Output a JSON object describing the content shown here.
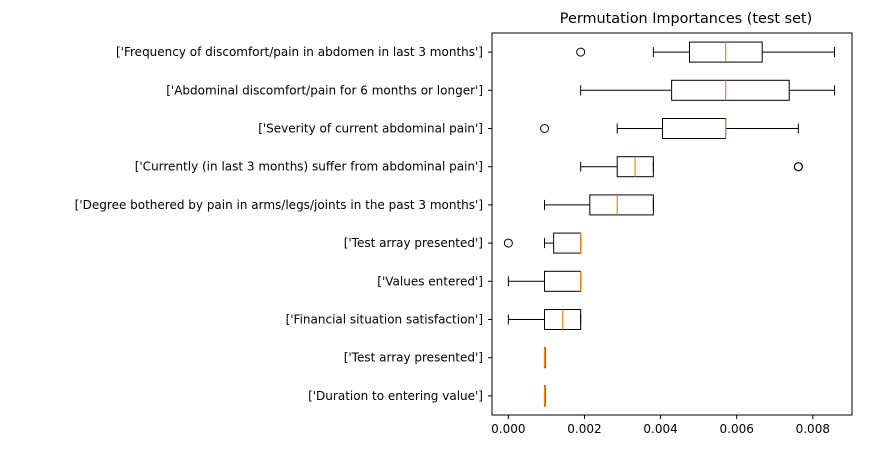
{
  "chart_data": {
    "type": "boxplot",
    "orientation": "horizontal",
    "title": "Permutation Importances (test set)",
    "xlabel": "",
    "ylabel": "",
    "xlim": [
      -0.00043,
      0.00903
    ],
    "xticks": [
      0.0,
      0.002,
      0.004,
      0.006,
      0.008
    ],
    "xtick_labels": [
      "0.000",
      "0.002",
      "0.004",
      "0.006",
      "0.008"
    ],
    "grid": false,
    "colors": {
      "box": "#000000",
      "median": "#ff7f0e",
      "background": "#ffffff"
    },
    "series": [
      {
        "label": "['Frequency of discomfort/pain in abdomen in last 3 months']",
        "whisker_low": 0.00381,
        "q1": 0.00476,
        "median": 0.00571,
        "q3": 0.00667,
        "whisker_high": 0.00857,
        "outliers": [
          0.0019
        ]
      },
      {
        "label": "['Abdominal discomfort/pain for 6 months or longer']",
        "whisker_low": 0.0019,
        "q1": 0.00429,
        "median": 0.00571,
        "q3": 0.00738,
        "whisker_high": 0.00857,
        "outliers": []
      },
      {
        "label": "['Severity of current abdominal pain']",
        "whisker_low": 0.00286,
        "q1": 0.00405,
        "median": 0.00571,
        "q3": 0.00571,
        "whisker_high": 0.00762,
        "outliers": [
          0.00095
        ]
      },
      {
        "label": "['Currently (in last 3 months) suffer from abdominal pain']",
        "whisker_low": 0.0019,
        "q1": 0.00286,
        "median": 0.00333,
        "q3": 0.00381,
        "whisker_high": 0.00381,
        "outliers": [
          0.00762,
          0.00762
        ]
      },
      {
        "label": "['Degree bothered by pain in arms/legs/joints in the past 3 months']",
        "whisker_low": 0.00095,
        "q1": 0.00214,
        "median": 0.00286,
        "q3": 0.00381,
        "whisker_high": 0.00381,
        "outliers": []
      },
      {
        "label": "['Test array presented']",
        "whisker_low": 0.00095,
        "q1": 0.00119,
        "median": 0.0019,
        "q3": 0.0019,
        "whisker_high": 0.0019,
        "outliers": [
          0.0
        ]
      },
      {
        "label": "['Values entered']",
        "whisker_low": 0.0,
        "q1": 0.00095,
        "median": 0.0019,
        "q3": 0.0019,
        "whisker_high": 0.0019,
        "outliers": []
      },
      {
        "label": "['Financial situation satisfaction']",
        "whisker_low": 0.0,
        "q1": 0.00095,
        "median": 0.00143,
        "q3": 0.0019,
        "whisker_high": 0.0019,
        "outliers": []
      },
      {
        "label": "['Test array presented']",
        "whisker_low": 0.00095,
        "q1": 0.00095,
        "median": 0.00095,
        "q3": 0.00095,
        "whisker_high": 0.00095,
        "outliers": []
      },
      {
        "label": "['Duration to entering value']",
        "whisker_low": 0.00095,
        "q1": 0.00095,
        "median": 0.00095,
        "q3": 0.00095,
        "whisker_high": 0.00095,
        "outliers": []
      }
    ]
  }
}
